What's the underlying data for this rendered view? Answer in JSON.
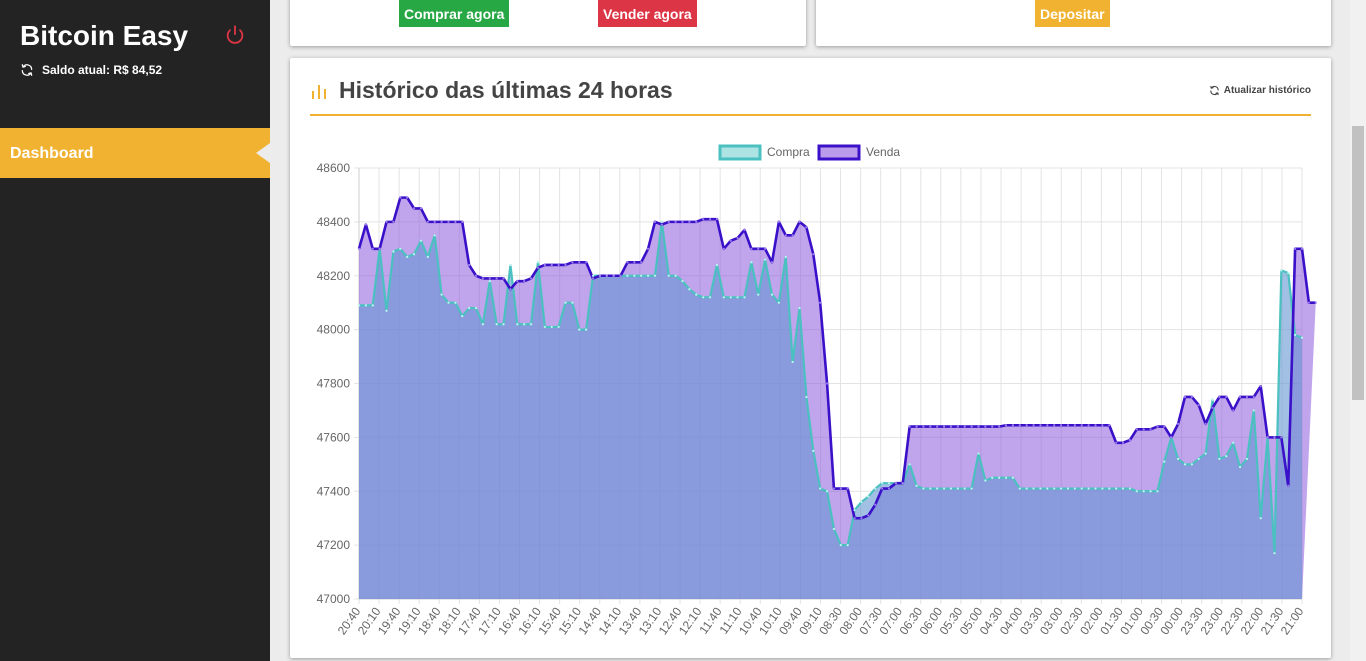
{
  "sidebar": {
    "brand": "Bitcoin Easy",
    "balance_label": "Saldo atual: R$ 84,52",
    "nav_items": [
      {
        "label": "Dashboard"
      }
    ],
    "icons": {
      "power": "power-icon",
      "refresh": "refresh-icon"
    }
  },
  "actions": {
    "buy_label": "Comprar agora",
    "sell_label": "Vender agora",
    "deposit_label": "Depositar"
  },
  "history": {
    "title": "Histórico das últimas 24 horas",
    "refresh_label": "Atualizar histórico"
  },
  "colors": {
    "sidebar_bg": "#232323",
    "accent": "#f0b230",
    "buy": "#28a745",
    "sell": "#dc3545",
    "buy_series_line": "#4bc0c0",
    "sell_series_line": "#3a10c8"
  },
  "chart_data": {
    "type": "area",
    "legend_position": "top",
    "grid": true,
    "ylim": [
      47000,
      48600
    ],
    "y_ticks": [
      47000,
      47200,
      47400,
      47600,
      47800,
      48000,
      48200,
      48400,
      48600
    ],
    "x_tick_labels": [
      "20:40",
      "20:10",
      "19:40",
      "19:10",
      "18:40",
      "18:10",
      "17:40",
      "17:10",
      "16:40",
      "16:10",
      "15:40",
      "15:10",
      "14:40",
      "14:10",
      "13:40",
      "13:10",
      "12:40",
      "12:10",
      "11:40",
      "11:10",
      "10:40",
      "10:10",
      "09:40",
      "09:10",
      "08:30",
      "08:00",
      "07:30",
      "07:00",
      "06:30",
      "06:00",
      "05:30",
      "05:00",
      "04:30",
      "04:00",
      "03:30",
      "03:00",
      "02:30",
      "02:00",
      "01:30",
      "01:00",
      "00:30",
      "00:00",
      "23:30",
      "23:00",
      "22:30",
      "22:00",
      "21:30",
      "21:00"
    ],
    "series": [
      {
        "name": "Compra",
        "values": [
          48090,
          48090,
          48090,
          48300,
          48070,
          48290,
          48300,
          48270,
          48280,
          48330,
          48270,
          48350,
          48130,
          48100,
          48100,
          48050,
          48080,
          48080,
          48020,
          48180,
          48020,
          48020,
          48240,
          48020,
          48020,
          48020,
          48250,
          48010,
          48010,
          48010,
          48100,
          48100,
          48000,
          48000,
          48200,
          48200,
          48200,
          48200,
          48200,
          48200,
          48200,
          48200,
          48200,
          48200,
          48400,
          48200,
          48200,
          48180,
          48150,
          48130,
          48120,
          48120,
          48240,
          48120,
          48120,
          48120,
          48120,
          48250,
          48130,
          48260,
          48130,
          48100,
          48270,
          47880,
          48080,
          47750,
          47550,
          47410,
          47400,
          47260,
          47200,
          47200,
          47330,
          47360,
          47380,
          47410,
          47430,
          47430,
          47430,
          47430,
          47500,
          47420,
          47410,
          47410,
          47410,
          47410,
          47410,
          47410,
          47410,
          47410,
          47540,
          47440,
          47450,
          47450,
          47450,
          47450,
          47410,
          47410,
          47410,
          47410,
          47410,
          47410,
          47410,
          47410,
          47410,
          47410,
          47410,
          47410,
          47410,
          47410,
          47410,
          47410,
          47410,
          47400,
          47400,
          47400,
          47400,
          47510,
          47600,
          47520,
          47500,
          47500,
          47520,
          47540,
          47740,
          47520,
          47530,
          47580,
          47490,
          47520,
          47700,
          47300,
          47600,
          47170,
          48220,
          48210,
          47980,
          47970
        ]
      },
      {
        "name": "Venda",
        "values": [
          48300,
          48390,
          48300,
          48300,
          48400,
          48400,
          48490,
          48490,
          48450,
          48450,
          48400,
          48400,
          48400,
          48400,
          48400,
          48400,
          48240,
          48200,
          48190,
          48190,
          48190,
          48190,
          48150,
          48180,
          48180,
          48190,
          48230,
          48240,
          48240,
          48240,
          48240,
          48250,
          48250,
          48250,
          48190,
          48200,
          48200,
          48200,
          48200,
          48250,
          48250,
          48250,
          48300,
          48400,
          48390,
          48400,
          48400,
          48400,
          48400,
          48400,
          48410,
          48410,
          48410,
          48300,
          48330,
          48340,
          48370,
          48300,
          48300,
          48300,
          48250,
          48400,
          48350,
          48350,
          48400,
          48380,
          48280,
          48100,
          47800,
          47410,
          47410,
          47410,
          47300,
          47300,
          47310,
          47350,
          47410,
          47410,
          47430,
          47430,
          47640,
          47640,
          47640,
          47640,
          47640,
          47640,
          47640,
          47640,
          47640,
          47640,
          47640,
          47640,
          47640,
          47640,
          47645,
          47645,
          47645,
          47645,
          47645,
          47645,
          47645,
          47645,
          47645,
          47645,
          47645,
          47645,
          47645,
          47645,
          47645,
          47645,
          47580,
          47580,
          47590,
          47630,
          47630,
          47630,
          47640,
          47640,
          47600,
          47650,
          47750,
          47750,
          47720,
          47650,
          47710,
          47750,
          47750,
          47700,
          47750,
          47750,
          47750,
          47790,
          47600,
          47600,
          47600,
          47420,
          48300,
          48300,
          48100,
          48100
        ]
      }
    ]
  }
}
